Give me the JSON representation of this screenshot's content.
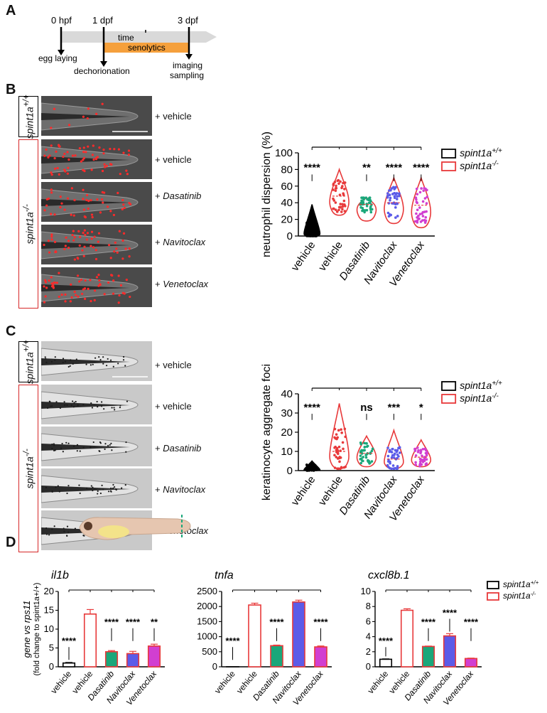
{
  "panels": {
    "A": "A",
    "B": "B",
    "C": "C",
    "D": "D"
  },
  "timeline": {
    "marks": [
      "0 hpf",
      "1 dpf",
      "3 dpf"
    ],
    "time_label": "time",
    "treatment_label": "senolytics",
    "events": [
      "egg laying",
      "dechorionation",
      "imaging",
      "sampling"
    ]
  },
  "genotypes": {
    "wt": {
      "base": "spint1a",
      "sup": "+/+"
    },
    "mut": {
      "base": "spint1a",
      "sup": "-/-"
    }
  },
  "treatments": [
    "+ vehicle",
    "+ vehicle",
    "+ Dasatinib",
    "+ Navitoclax",
    "+ Venetoclax"
  ],
  "colors": {
    "wt": "#000000",
    "mut": "#e8393a",
    "dasatinib": "#1aa77a",
    "navitoclax": "#5b5be8",
    "venetoclax": "#d13fd1",
    "vehicle_mut_dots": "#e8393a",
    "neutrophil": "#ff2a2a"
  },
  "chart_data": [
    {
      "type": "violin",
      "panel": "B",
      "ylabel": "neutrophil dispersion (%)",
      "ylim": [
        0,
        100
      ],
      "yticks": [
        0,
        20,
        40,
        60,
        80,
        100
      ],
      "categories": [
        "vehicle",
        "vehicle",
        "Dasatinib",
        "Navitoclax",
        "Venetoclax"
      ],
      "italic": [
        false,
        false,
        true,
        true,
        true
      ],
      "medians": [
        3,
        48,
        38,
        40,
        37
      ],
      "ranges": [
        [
          0,
          38
        ],
        [
          25,
          80
        ],
        [
          18,
          46
        ],
        [
          15,
          70
        ],
        [
          10,
          70
        ]
      ],
      "significance": [
        "****",
        "",
        "**",
        "****",
        "****"
      ],
      "legend": [
        "spint1a+/+",
        "spint1a-/-"
      ]
    },
    {
      "type": "violin",
      "panel": "C",
      "ylabel": "keratinocyte aggregate foci",
      "ylim": [
        0,
        40
      ],
      "yticks": [
        0,
        10,
        20,
        30,
        40
      ],
      "categories": [
        "vehicle",
        "vehicle",
        "Dasatinib",
        "Navitoclax",
        "Venetoclax"
      ],
      "italic": [
        false,
        false,
        true,
        true,
        true
      ],
      "medians": [
        1.5,
        10,
        9,
        6,
        7
      ],
      "ranges": [
        [
          0,
          5
        ],
        [
          1,
          35
        ],
        [
          2,
          18
        ],
        [
          1,
          21
        ],
        [
          2,
          16
        ]
      ],
      "significance": [
        "****",
        "",
        "ns",
        "***",
        "*"
      ],
      "legend": [
        "spint1a+/+",
        "spint1a-/-"
      ]
    },
    {
      "type": "bar",
      "panel": "D",
      "title": "il1b",
      "ylabel": "gene vs rps11",
      "ylabel2": "(fold change to spint1a+/+)",
      "ylim": [
        0,
        20
      ],
      "yticks": [
        0,
        5,
        10,
        15,
        20
      ],
      "categories": [
        "vehicle",
        "vehicle",
        "Dasatinib",
        "Navitoclax",
        "Venetoclax"
      ],
      "values": [
        1,
        14,
        4,
        3.5,
        5.5
      ],
      "errors": [
        0.15,
        1.2,
        0.3,
        0.6,
        0.5
      ],
      "significance": [
        "****",
        "",
        "****",
        "****",
        "**"
      ]
    },
    {
      "type": "bar",
      "panel": "D",
      "title": "tnfa",
      "ylim": [
        0,
        2500
      ],
      "yticks": [
        0,
        500,
        1000,
        1500,
        2000,
        2500
      ],
      "categories": [
        "vehicle",
        "vehicle",
        "Dasatinib",
        "Navitoclax",
        "Venetoclax"
      ],
      "values": [
        1,
        2050,
        700,
        2150,
        660
      ],
      "errors": [
        0,
        60,
        20,
        60,
        30
      ],
      "significance": [
        "****",
        "",
        "****",
        "",
        "****"
      ]
    },
    {
      "type": "bar",
      "panel": "D",
      "title": "cxcl8b.1",
      "ylim": [
        0,
        10
      ],
      "yticks": [
        0,
        2,
        4,
        6,
        8,
        10
      ],
      "categories": [
        "vehicle",
        "vehicle",
        "Dasatinib",
        "Navitoclax",
        "Venetoclax"
      ],
      "values": [
        1,
        7.5,
        2.7,
        4.1,
        1.1
      ],
      "errors": [
        0.05,
        0.2,
        0.05,
        0.3,
        0.05
      ],
      "significance": [
        "****",
        "",
        "****",
        "****",
        "****"
      ]
    }
  ]
}
